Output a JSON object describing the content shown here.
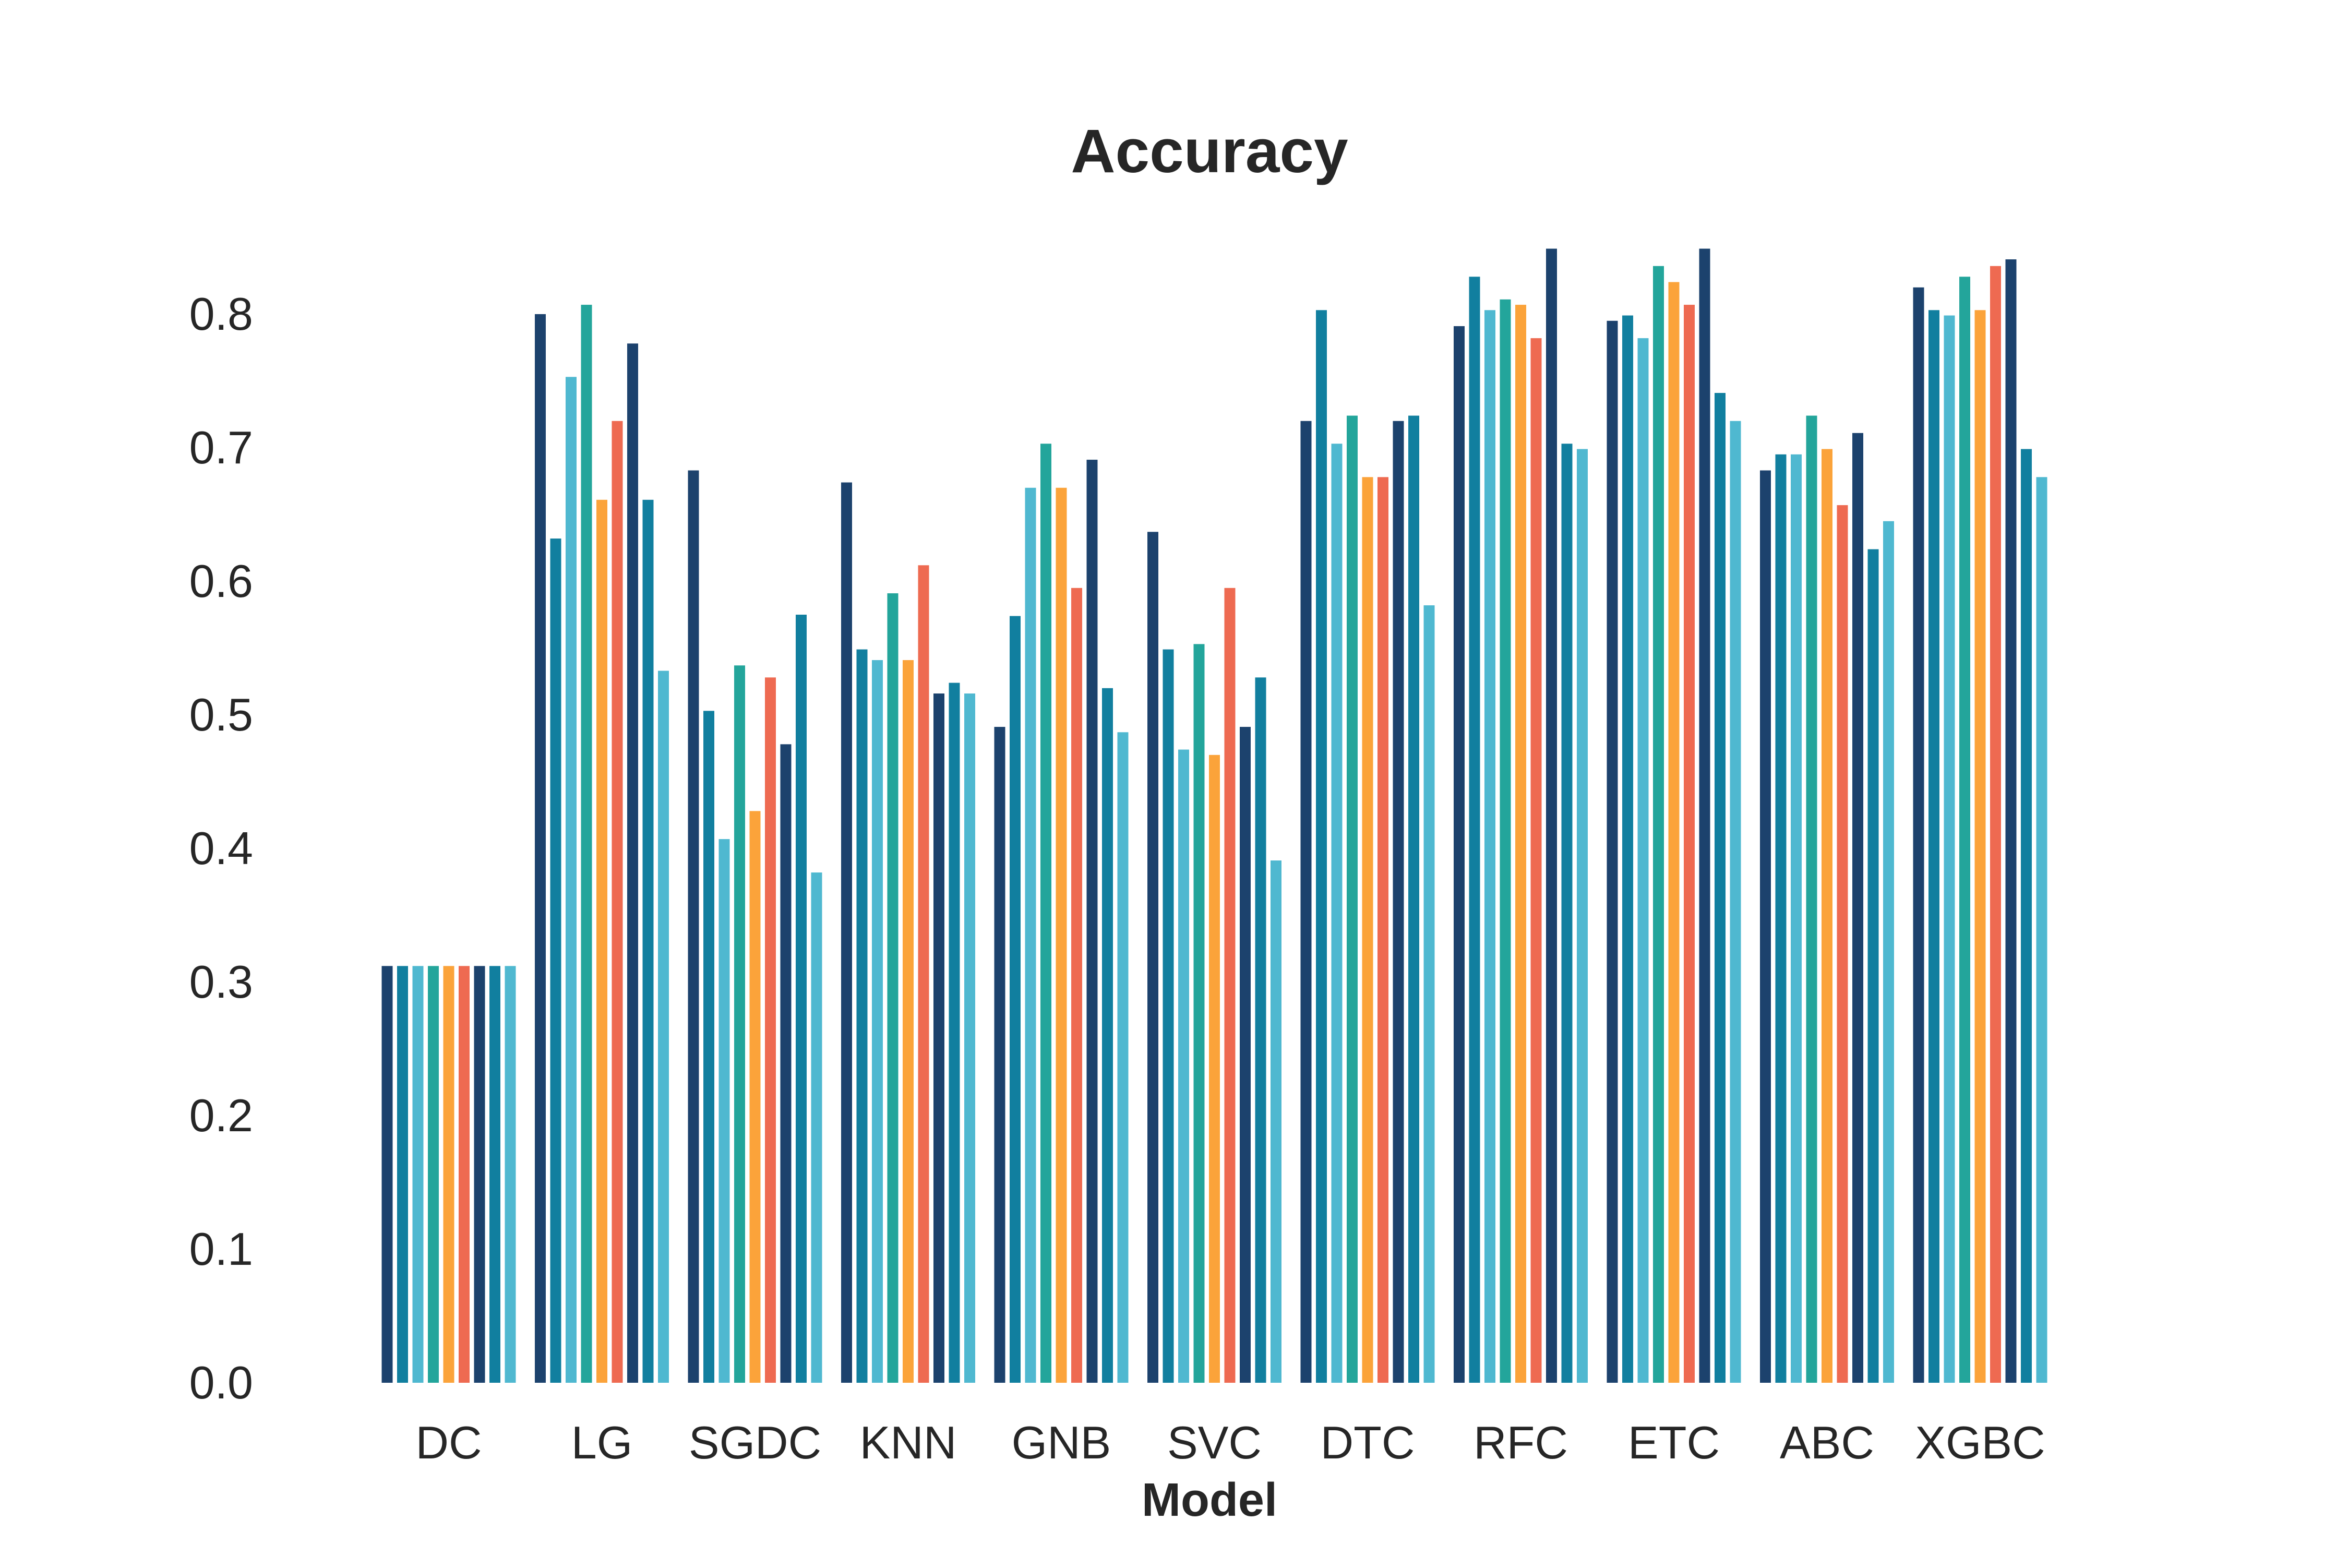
{
  "chart_data": {
    "type": "bar",
    "title": "Accuracy",
    "xlabel": "Model",
    "ylabel": "",
    "ylim": [
      0,
      0.85
    ],
    "yticks": [
      "0.0",
      "0.1",
      "0.2",
      "0.3",
      "0.4",
      "0.5",
      "0.6",
      "0.7",
      "0.8"
    ],
    "grid": false,
    "legend": "none",
    "categories": [
      "DC",
      "LG",
      "SGDC",
      "KNN",
      "GNB",
      "SVC",
      "DTC",
      "RFC",
      "ETC",
      "ABC",
      "XGBC"
    ],
    "bar_colors": [
      "#1c426d",
      "#117f9f",
      "#4fb8d0",
      "#23a59b",
      "#fba33a",
      "#ee6a51",
      "#1c426d",
      "#117f9f",
      "#4fb8d0"
    ],
    "groups": [
      {
        "model": "DC",
        "values": [
          0.312,
          0.312,
          0.312,
          0.312,
          0.312,
          0.312,
          0.312,
          0.312,
          0.312
        ],
        "colors": [
          0,
          1,
          2,
          3,
          4,
          5,
          6,
          7,
          8
        ]
      },
      {
        "model": "LG",
        "values": [
          0.8,
          0.632,
          0.753,
          0.807,
          0.661,
          0.72,
          0.778,
          0.661,
          0.533
        ],
        "colors": [
          0,
          1,
          2,
          3,
          4,
          5,
          6,
          7,
          8
        ]
      },
      {
        "model": "SGDC",
        "values": [
          0.683,
          0.503,
          0.407,
          0.537,
          0.428,
          0.528,
          0.478,
          0.575,
          0.382
        ],
        "colors": [
          0,
          1,
          2,
          3,
          4,
          5,
          6,
          7,
          8
        ]
      },
      {
        "model": "KNN",
        "values": [
          0.674,
          0.549,
          0.541,
          0.591,
          0.541,
          0.612,
          0.516,
          0.524,
          0.516
        ],
        "colors": [
          0,
          1,
          2,
          3,
          4,
          5,
          6,
          7,
          8
        ]
      },
      {
        "model": "GNB",
        "values": [
          0.491,
          0.574,
          0.67,
          0.703,
          0.67,
          0.595,
          0.691,
          0.52,
          0.487
        ],
        "colors": [
          0,
          1,
          2,
          3,
          4,
          5,
          6,
          7,
          8
        ]
      },
      {
        "model": "SVC",
        "values": [
          0.637,
          0.549,
          0.474,
          0.553,
          0.47,
          0.595,
          0.491,
          0.528,
          0.391
        ],
        "colors": [
          0,
          1,
          2,
          3,
          4,
          5,
          6,
          7,
          8
        ]
      },
      {
        "model": "DTC",
        "values": [
          0.72,
          0.803,
          0.703,
          0.724,
          0.678,
          0.678,
          0.72,
          0.724,
          0.582
        ],
        "colors": [
          0,
          1,
          2,
          3,
          4,
          5,
          6,
          7,
          8
        ]
      },
      {
        "model": "RFC",
        "values": [
          0.791,
          0.828,
          0.803,
          0.811,
          0.807,
          0.782,
          0.849,
          0.703,
          0.699
        ],
        "colors": [
          0,
          1,
          2,
          3,
          4,
          5,
          6,
          7,
          8
        ]
      },
      {
        "model": "ETC",
        "values": [
          0.795,
          0.799,
          0.782,
          0.836,
          0.824,
          0.807,
          0.849,
          0.741,
          0.72
        ],
        "colors": [
          0,
          1,
          2,
          3,
          4,
          5,
          6,
          7,
          8
        ]
      },
      {
        "model": "ABC",
        "values": [
          0.683,
          0.695,
          0.695,
          0.724,
          0.699,
          0.657,
          0.711,
          0.624,
          0.645
        ],
        "colors": [
          0,
          1,
          2,
          3,
          4,
          5,
          6,
          7,
          8
        ]
      },
      {
        "model": "XGBC",
        "values": [
          0.82,
          0.803,
          0.799,
          0.828,
          0.803,
          0.836,
          0.841,
          0.699,
          0.678
        ],
        "colors": [
          0,
          1,
          2,
          3,
          4,
          5,
          6,
          7,
          8
        ]
      }
    ]
  }
}
